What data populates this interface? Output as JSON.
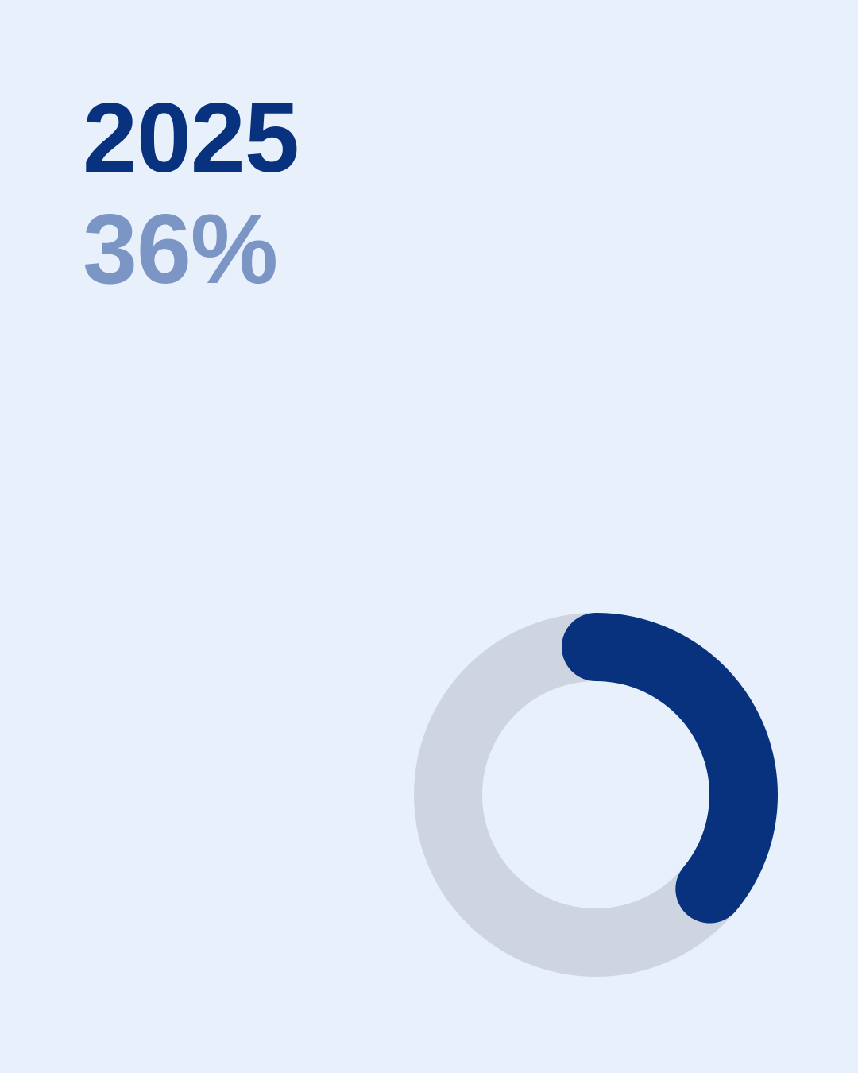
{
  "colors": {
    "background": "#e8f0fc",
    "year_text": "#08327e",
    "percent_text": "#7b96c4",
    "track": "#ced5e0",
    "progress": "#08327e"
  },
  "header": {
    "year": "2025",
    "percent_label": "36%"
  },
  "chart_data": {
    "type": "pie",
    "style": "donut",
    "categories": [
      "2025"
    ],
    "values": [
      36
    ],
    "max": 100,
    "unit": "%",
    "title": "",
    "legend": "none",
    "grid": false
  }
}
